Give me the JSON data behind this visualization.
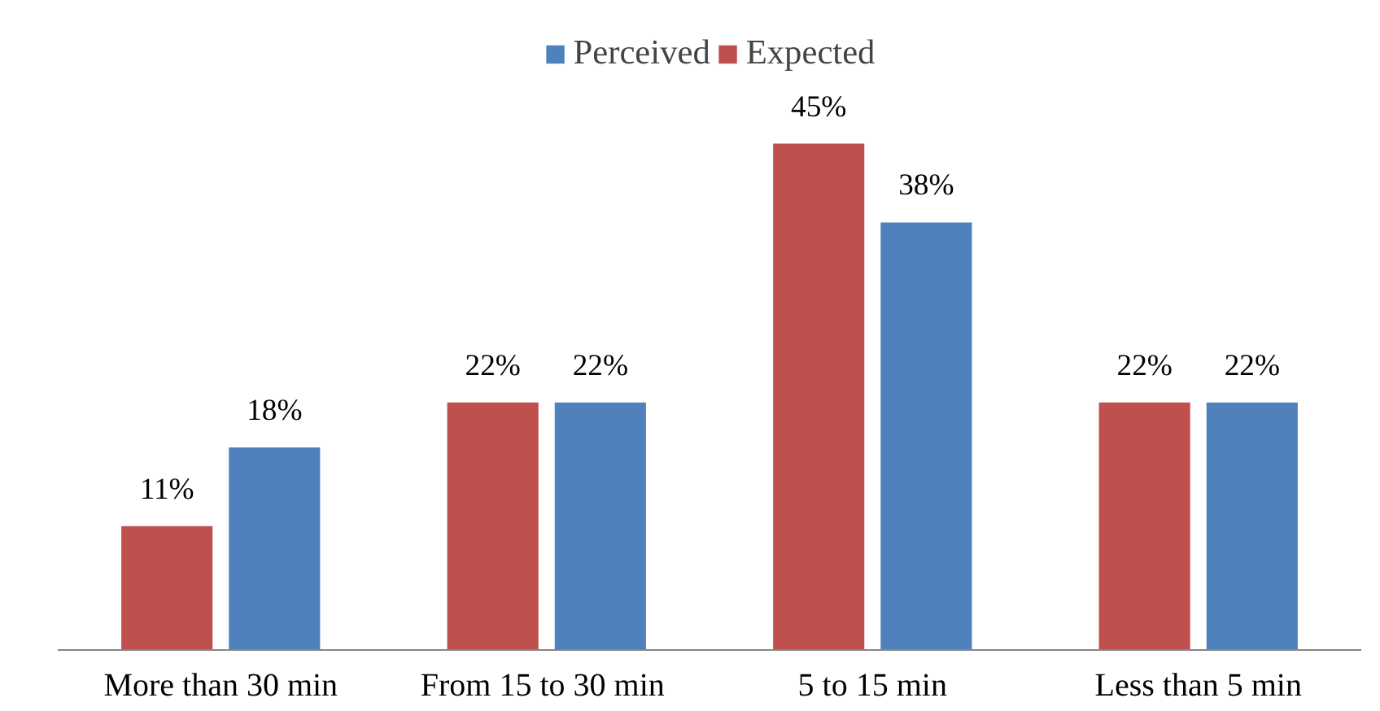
{
  "chart_data": {
    "type": "bar",
    "categories": [
      "More than 30 min",
      "From 15  to 30 min",
      "5 to 15 min",
      "Less than 5 min"
    ],
    "series": [
      {
        "name": "Expected",
        "color": "#c0504d",
        "values": [
          11,
          22,
          45,
          22
        ],
        "value_labels": [
          "11%",
          "22%",
          "45%",
          "22%"
        ]
      },
      {
        "name": "Perceived",
        "color": "#4f81bd",
        "values": [
          18,
          22,
          38,
          22
        ],
        "value_labels": [
          "18%",
          "22%",
          "38%",
          "22%"
        ]
      }
    ],
    "legend": "top",
    "grid": false
  }
}
